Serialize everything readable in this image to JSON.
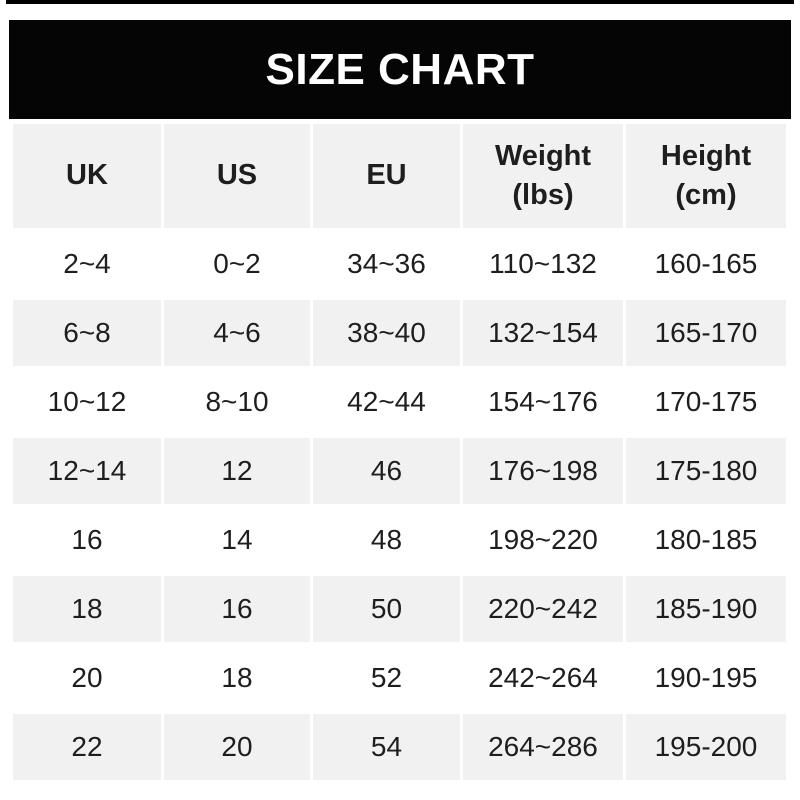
{
  "banner": {
    "title": "SIZE CHART",
    "background": "#050505",
    "text_color": "#ffffff"
  },
  "colors": {
    "page_background": "#ffffff",
    "stripe": "#f1f1f2",
    "text": "#1e1e1e",
    "top_border": "#000000"
  },
  "chart_data": {
    "type": "table",
    "title": "SIZE CHART",
    "columns": [
      {
        "label": "UK",
        "sub": ""
      },
      {
        "label": "US",
        "sub": ""
      },
      {
        "label": "EU",
        "sub": ""
      },
      {
        "label": "Weight",
        "sub": "(lbs)"
      },
      {
        "label": "Height",
        "sub": "(cm)"
      }
    ],
    "rows": [
      [
        "2~4",
        "0~2",
        "34~36",
        "110~132",
        "160-165"
      ],
      [
        "6~8",
        "4~6",
        "38~40",
        "132~154",
        "165-170"
      ],
      [
        "10~12",
        "8~10",
        "42~44",
        "154~176",
        "170-175"
      ],
      [
        "12~14",
        "12",
        "46",
        "176~198",
        "175-180"
      ],
      [
        "16",
        "14",
        "48",
        "198~220",
        "180-185"
      ],
      [
        "18",
        "16",
        "50",
        "220~242",
        "185-190"
      ],
      [
        "20",
        "18",
        "52",
        "242~264",
        "190-195"
      ],
      [
        "22",
        "20",
        "54",
        "264~286",
        "195-200"
      ]
    ]
  }
}
